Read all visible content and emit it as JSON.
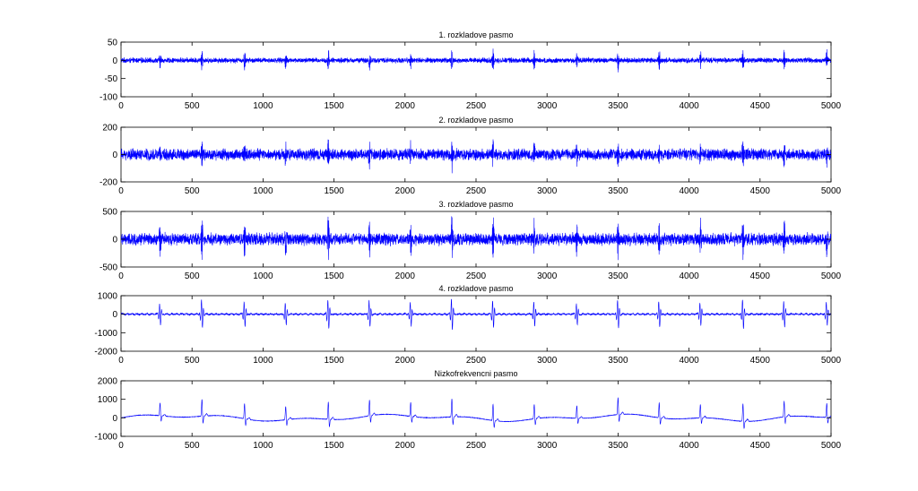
{
  "chart_data": [
    {
      "type": "line",
      "title": "1. rozkladove pasmo",
      "xlim": [
        0,
        5000
      ],
      "ylim": [
        -100,
        50
      ],
      "xticks": [
        0,
        500,
        1000,
        1500,
        2000,
        2500,
        3000,
        3500,
        4000,
        4500,
        5000
      ],
      "yticks": [
        50,
        0,
        -50,
        -100
      ],
      "line_color": "#0000FF",
      "n_points": 5000,
      "beats": [
        275,
        570,
        870,
        1160,
        1460,
        1750,
        2040,
        2330,
        2620,
        2910,
        3210,
        3500,
        3790,
        4080,
        4380,
        4670,
        4970
      ],
      "spike_amplitude": 30,
      "noise_amplitude": 6
    },
    {
      "type": "line",
      "title": "2. rozkladove pasmo",
      "xlim": [
        0,
        5000
      ],
      "ylim": [
        -200,
        200
      ],
      "xticks": [
        0,
        500,
        1000,
        1500,
        2000,
        2500,
        3000,
        3500,
        4000,
        4500,
        5000
      ],
      "yticks": [
        200,
        0,
        -200
      ],
      "line_color": "#0000FF",
      "n_points": 5000,
      "beats": [
        275,
        570,
        870,
        1160,
        1460,
        1750,
        2040,
        2330,
        2620,
        2910,
        3210,
        3500,
        3790,
        4080,
        4380,
        4670,
        4970
      ],
      "spike_amplitude": 100,
      "noise_amplitude": 35
    },
    {
      "type": "line",
      "title": "3. rozkladove pasmo",
      "xlim": [
        0,
        5000
      ],
      "ylim": [
        -500,
        500
      ],
      "xticks": [
        0,
        500,
        1000,
        1500,
        2000,
        2500,
        3000,
        3500,
        4000,
        4500,
        5000
      ],
      "yticks": [
        500,
        0,
        -500
      ],
      "line_color": "#0000FF",
      "n_points": 5000,
      "beats": [
        275,
        570,
        870,
        1160,
        1460,
        1750,
        2040,
        2330,
        2620,
        2910,
        3210,
        3500,
        3790,
        4080,
        4380,
        4670,
        4970
      ],
      "spike_amplitude": 380,
      "noise_amplitude": 90
    },
    {
      "type": "line",
      "title": "4. rozkladove pasmo",
      "xlim": [
        0,
        5000
      ],
      "ylim": [
        -2000,
        1000
      ],
      "xticks": [
        0,
        500,
        1000,
        1500,
        2000,
        2500,
        3000,
        3500,
        4000,
        4500,
        5000
      ],
      "yticks": [
        1000,
        0,
        -1000,
        -2000
      ],
      "line_color": "#0000FF",
      "n_points": 5000,
      "beats": [
        275,
        570,
        870,
        1160,
        1460,
        1750,
        2040,
        2330,
        2620,
        2910,
        3210,
        3500,
        3790,
        4080,
        4380,
        4670,
        4970
      ],
      "spike_amplitude": 850,
      "noise_amplitude": 60
    },
    {
      "type": "line",
      "title": "Nizkofrekvencni pasmo",
      "xlim": [
        0,
        5000
      ],
      "ylim": [
        -1000,
        2000
      ],
      "xticks": [
        0,
        500,
        1000,
        1500,
        2000,
        2500,
        3000,
        3500,
        4000,
        4500,
        5000
      ],
      "yticks": [
        2000,
        1000,
        0,
        -1000
      ],
      "line_color": "#0000FF",
      "n_points": 5000,
      "beats": [
        275,
        570,
        870,
        1160,
        1460,
        1750,
        2040,
        2330,
        2620,
        2910,
        3210,
        3500,
        3790,
        4080,
        4380,
        4670,
        4970
      ],
      "spike_amplitude": 950,
      "noise_amplitude": 25
    }
  ]
}
